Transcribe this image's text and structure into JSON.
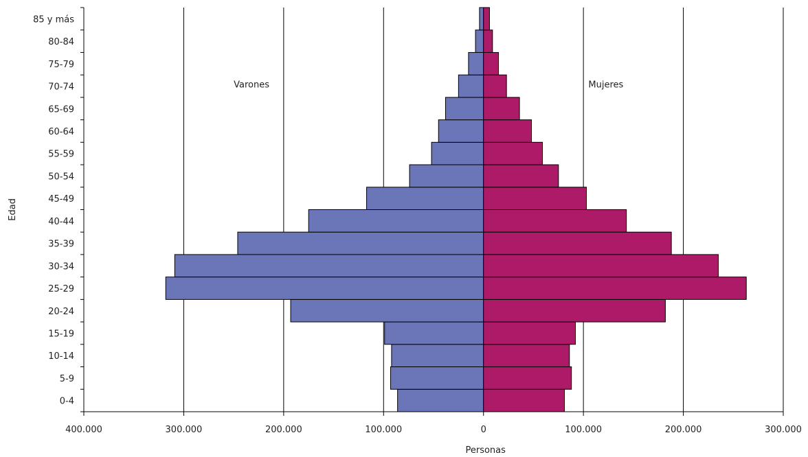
{
  "chart_data": {
    "type": "bar",
    "orientation": "horizontal",
    "subtype": "population-pyramid",
    "categories": [
      "0-4",
      "5-9",
      "10-14",
      "15-19",
      "20-24",
      "25-29",
      "30-34",
      "35-39",
      "40-44",
      "45-49",
      "50-54",
      "55-59",
      "60-64",
      "65-69",
      "70-74",
      "75-79",
      "80-84",
      "85 y más"
    ],
    "series": [
      {
        "name": "Varones",
        "side": "left",
        "color": "#6b76b9",
        "values": [
          86000,
          93000,
          92000,
          99000,
          193000,
          318000,
          309000,
          246000,
          175000,
          117000,
          74000,
          52000,
          45000,
          38000,
          25000,
          15000,
          8000,
          4000
        ]
      },
      {
        "name": "Mujeres",
        "side": "right",
        "color": "#ad1a68",
        "values": [
          81000,
          88000,
          86000,
          92000,
          182000,
          263000,
          235000,
          188000,
          143000,
          103000,
          75000,
          59000,
          48000,
          36000,
          23000,
          15000,
          9000,
          6000
        ]
      }
    ],
    "xlabel": "Personas",
    "ylabel": "Edad",
    "xlim": [
      -400000,
      300000
    ],
    "xticks": [
      -400000,
      -300000,
      -200000,
      -100000,
      0,
      100000,
      200000,
      300000
    ],
    "xtick_labels": [
      "400.000",
      "300.000",
      "200.000",
      "100.000",
      "0",
      "100.000",
      "200.000",
      "300.000"
    ],
    "annotations": [
      {
        "text": "Varones",
        "x": -250000,
        "category": "70-74"
      },
      {
        "text": "Mujeres",
        "x": 105000,
        "category": "70-74"
      }
    ],
    "grid": "vertical",
    "legend": "none",
    "gridline_color": "#000000",
    "bar_edge_color": "#000000"
  }
}
